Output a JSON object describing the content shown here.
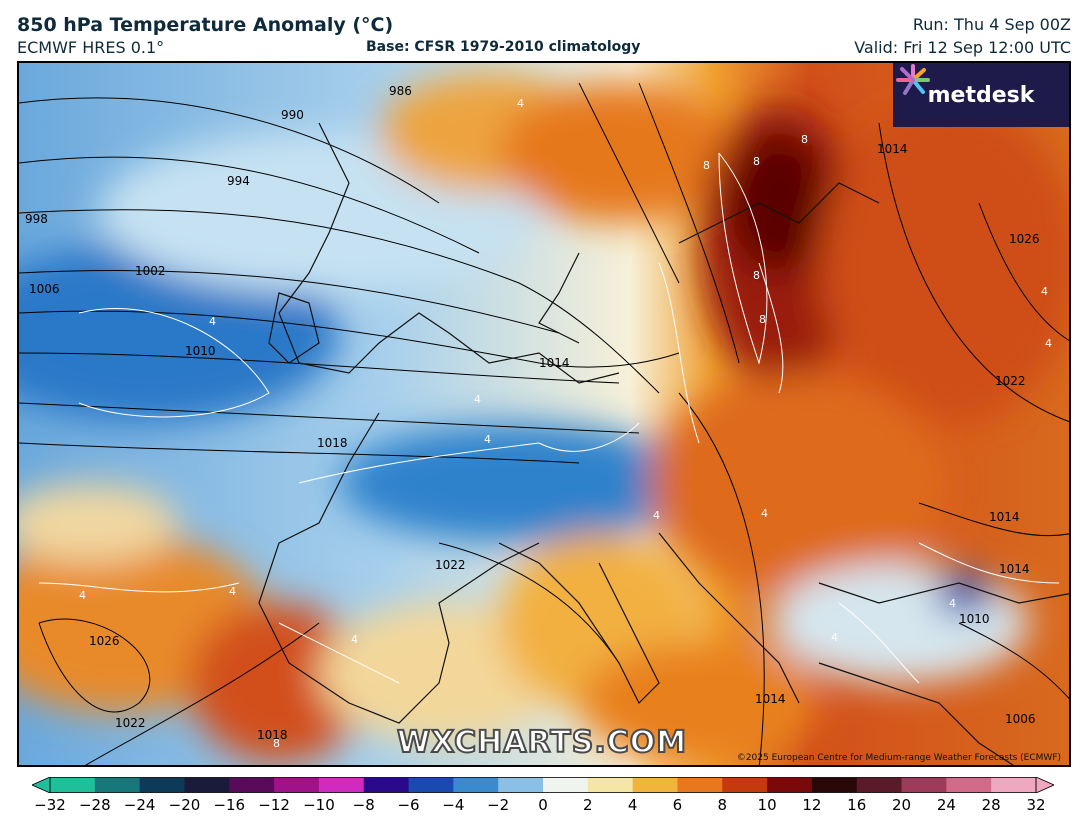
{
  "header": {
    "title": "850 hPa Temperature Anomaly (°C)",
    "model": "ECMWF HRES 0.1°",
    "base": "Base: CFSR 1979-2010 climatology",
    "run": "Run: Thu 4 Sep 00Z",
    "valid": "Valid: Fri 12 Sep 12:00 UTC"
  },
  "map": {
    "isobar_labels": [
      "986",
      "990",
      "994",
      "998",
      "1002",
      "1006",
      "1010",
      "1014",
      "1018",
      "1022",
      "1026",
      "1022",
      "1018",
      "1014",
      "1014",
      "1022",
      "1026",
      "1014",
      "1010",
      "1006",
      "1014"
    ],
    "anomaly_labels": [
      "4",
      "4",
      "4",
      "4",
      "8",
      "8",
      "8",
      "8",
      "8",
      "4",
      "4",
      "4",
      "4",
      "4",
      "4",
      "4",
      "4",
      "8",
      "4"
    ],
    "colors": {
      "cold_strong": "#1f6fc5",
      "cold": "#5aa0dc",
      "cool": "#bcdcef",
      "neutral": "#f4f1dc",
      "warm": "#f2b53c",
      "hot": "#e06a1a",
      "very_hot": "#b52808",
      "extreme": "#6e0a0a"
    }
  },
  "brand": {
    "logo_text": "metdesk",
    "logo_icon": "metdesk-burst-icon",
    "watermark": "WXCHARTS.COM",
    "credit": "©2025 European Centre for Medium-range Weather Forecasts (ECMWF)"
  },
  "colorbar": {
    "ticks": [
      "−32",
      "−28",
      "−24",
      "−20",
      "−16",
      "−12",
      "−10",
      "−8",
      "−6",
      "−4",
      "−2",
      "0",
      "2",
      "4",
      "6",
      "8",
      "10",
      "12",
      "16",
      "20",
      "24",
      "28",
      "32"
    ],
    "stops": [
      "#1fbf9a",
      "#16787a",
      "#0e3a5a",
      "#1a1a3a",
      "#5a0a5a",
      "#a0128a",
      "#d02ac0",
      "#2a0a8a",
      "#1a4ab0",
      "#3a8ad0",
      "#8ac0e6",
      "#f0f4ee",
      "#f6e6a6",
      "#f2b53c",
      "#e8781e",
      "#c43a0c",
      "#7a0a0a",
      "#2a0808",
      "#5a1a2a",
      "#a03a5a",
      "#d46a8a",
      "#f0a8c0"
    ]
  }
}
